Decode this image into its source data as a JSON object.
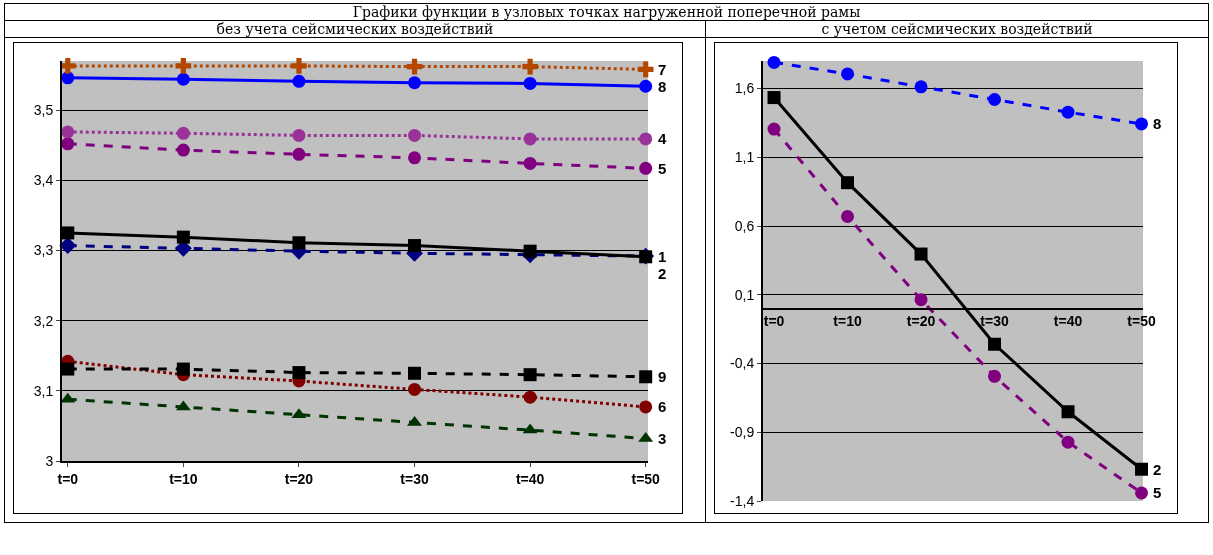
{
  "chart_data": [
    {
      "type": "line",
      "title": "Графики функции в узловых точках нагруженной поперечной рамы",
      "subtitle": "без учета сейсмических воздействий",
      "categories": [
        "t=0",
        "t=10",
        "t=20",
        "t=30",
        "t=40",
        "t=50"
      ],
      "ylim": [
        3,
        3.57
      ],
      "yticks": [
        3,
        {
          "value": 3.1,
          "label": "3,1"
        },
        {
          "value": 3.2,
          "label": "3,2"
        },
        {
          "value": 3.3,
          "label": "3,3"
        },
        {
          "value": 3.4,
          "label": "3,4"
        },
        {
          "value": 3.5,
          "label": "3,5"
        }
      ],
      "grid": "y",
      "legend": false,
      "series": [
        {
          "name": "7",
          "color": "#b34700",
          "marker": "cross",
          "line_style": "dotted",
          "values": [
            3.563,
            3.563,
            3.563,
            3.562,
            3.562,
            3.558
          ]
        },
        {
          "name": "8",
          "color": "#0000ff",
          "marker": "circle",
          "line_style": "solid",
          "values": [
            3.546,
            3.544,
            3.541,
            3.539,
            3.538,
            3.534
          ]
        },
        {
          "name": "4",
          "color": "#993399",
          "marker": "circle",
          "line_style": "dotted",
          "values": [
            3.469,
            3.467,
            3.464,
            3.464,
            3.459,
            3.459
          ]
        },
        {
          "name": "5",
          "color": "#800080",
          "marker": "circle",
          "line_style": "dashed",
          "values": [
            3.452,
            3.443,
            3.437,
            3.432,
            3.424,
            3.417
          ]
        },
        {
          "name": "2",
          "color": "#000000",
          "marker": "square",
          "line_style": "solid",
          "values": [
            3.325,
            3.319,
            3.311,
            3.307,
            3.299,
            3.291
          ]
        },
        {
          "name": "1",
          "color": "#000080",
          "marker": "diamond",
          "line_style": "dashed",
          "values": [
            3.307,
            3.303,
            3.299,
            3.296,
            3.294,
            3.292
          ]
        },
        {
          "name": "9",
          "color": "#000000",
          "marker": "square",
          "line_style": "dashed",
          "values": [
            3.131,
            3.131,
            3.126,
            3.125,
            3.123,
            3.12
          ]
        },
        {
          "name": "6",
          "color": "#800000",
          "marker": "circle",
          "line_style": "dotted",
          "values": [
            3.142,
            3.123,
            3.114,
            3.102,
            3.091,
            3.077
          ]
        },
        {
          "name": "3",
          "color": "#003300",
          "marker": "triangle",
          "line_style": "dashed",
          "values": [
            3.088,
            3.077,
            3.066,
            3.055,
            3.044,
            3.032
          ]
        }
      ]
    },
    {
      "type": "line",
      "title": "с учетом сейсмических воздействий",
      "categories": [
        "t=0",
        "t=10",
        "t=20",
        "t=30",
        "t=40",
        "t=50"
      ],
      "ylim": [
        -1.4,
        1.8
      ],
      "yticks": [
        {
          "value": -1.4,
          "label": "-1,4"
        },
        {
          "value": -0.9,
          "label": "-0,9"
        },
        {
          "value": -0.4,
          "label": "-0,4"
        },
        {
          "value": 0.1,
          "label": "0,1"
        },
        {
          "value": 0.6,
          "label": "0,6"
        },
        {
          "value": 1.1,
          "label": "1,1"
        },
        {
          "value": 1.6,
          "label": "1,6"
        }
      ],
      "grid": "y",
      "legend": false,
      "series": [
        {
          "name": "8",
          "color": "#0000ff",
          "marker": "circle",
          "line_style": "dashed",
          "values": [
            1.79,
            1.706,
            1.612,
            1.52,
            1.428,
            1.342
          ]
        },
        {
          "name": "2",
          "color": "#000000",
          "marker": "square",
          "line_style": "solid",
          "values": [
            1.534,
            0.915,
            0.396,
            -0.26,
            -0.751,
            -1.169
          ]
        },
        {
          "name": "5",
          "color": "#800080",
          "marker": "circle",
          "line_style": "dashed",
          "values": [
            1.305,
            0.669,
            0.064,
            -0.493,
            -0.972,
            -1.341
          ]
        }
      ]
    }
  ]
}
